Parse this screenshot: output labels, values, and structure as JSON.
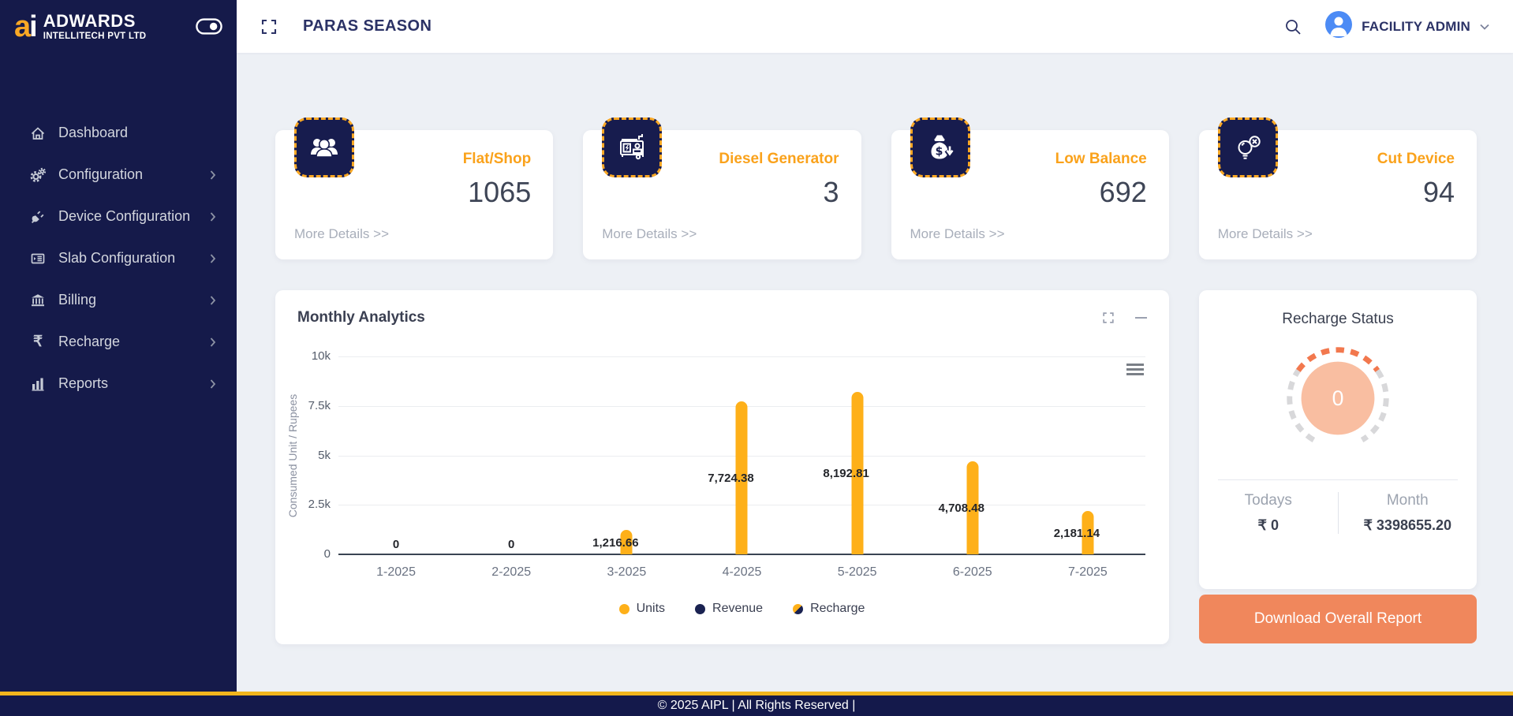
{
  "brand": {
    "mark_a": "a",
    "mark_i": "i",
    "name": "ADWARDS",
    "subtitle": "INTELLITECH PVT LTD"
  },
  "header": {
    "title": "PARAS SEASON",
    "user_name": "FACILITY ADMIN"
  },
  "sidebar": {
    "items": [
      {
        "label": "Dashboard",
        "icon": "home-icon",
        "has_submenu": false
      },
      {
        "label": "Configuration",
        "icon": "gears-icon",
        "has_submenu": true
      },
      {
        "label": "Device Configuration",
        "icon": "plug-icon",
        "has_submenu": true
      },
      {
        "label": "Slab Configuration",
        "icon": "slab-list-icon",
        "has_submenu": true
      },
      {
        "label": "Billing",
        "icon": "bank-icon",
        "has_submenu": true
      },
      {
        "label": "Recharge",
        "icon": "rupee-icon",
        "has_submenu": true
      },
      {
        "label": "Reports",
        "icon": "bar-chart-icon",
        "has_submenu": true
      }
    ]
  },
  "cards": [
    {
      "label": "Flat/Shop",
      "value": "1065",
      "more_link": "More Details >>",
      "icon": "users-icon"
    },
    {
      "label": "Diesel Generator",
      "value": "3",
      "more_link": "More Details >>",
      "icon": "generator-icon"
    },
    {
      "label": "Low Balance",
      "value": "692",
      "more_link": "More Details >>",
      "icon": "money-bag-down-icon"
    },
    {
      "label": "Cut Device",
      "value": "94",
      "more_link": "More Details >>",
      "icon": "bulb-off-icon"
    }
  ],
  "chart_card": {
    "title": "Monthly Analytics"
  },
  "chart_data": {
    "type": "bar",
    "title": "Monthly Analytics",
    "categories": [
      "1-2025",
      "2-2025",
      "3-2025",
      "4-2025",
      "5-2025",
      "6-2025",
      "7-2025"
    ],
    "series": [
      {
        "name": "Units",
        "color": "#FEB019",
        "values": [
          0,
          0,
          1216.66,
          7724.38,
          8192.81,
          4708.48,
          2181.14
        ],
        "labels": [
          "0",
          "0",
          "1,216.66",
          "7,724.38",
          "8,192.81",
          "4,708.48",
          "2,181.14"
        ]
      },
      {
        "name": "Revenue",
        "color": "#1A2251",
        "values": []
      },
      {
        "name": "Recharge",
        "colors": [
          "#FEB019",
          "#1A2251"
        ],
        "values": []
      }
    ],
    "xlabel": "",
    "ylabel": "Consumed Unit / Rupees",
    "ylim": [
      0,
      10000
    ],
    "yticks": [
      "10k",
      "7.5k",
      "5k",
      "2.5k",
      "0"
    ],
    "grid": true,
    "legend_position": "bottom"
  },
  "recharge": {
    "title": "Recharge Status",
    "center_value": "0",
    "todays_label": "Todays",
    "todays_value": "₹ 0",
    "month_label": "Month",
    "month_value": "₹ 3398655.20",
    "button_label": "Download Overall Report"
  },
  "footer": {
    "text": "© 2025 AIPL | All Rights Reserved |"
  },
  "colors": {
    "sidebar_navy": "#151A4A",
    "icon_navy": "#171C4E",
    "accent_orange": "#F9A825",
    "bar_orange": "#FEB019",
    "salmon_button": "#F0875C",
    "ring_fill": "#F9BEA1",
    "ring_orange": "#F2784E",
    "avatar_blue": "#4C8BF5",
    "gold_line": "#F2B51D"
  }
}
